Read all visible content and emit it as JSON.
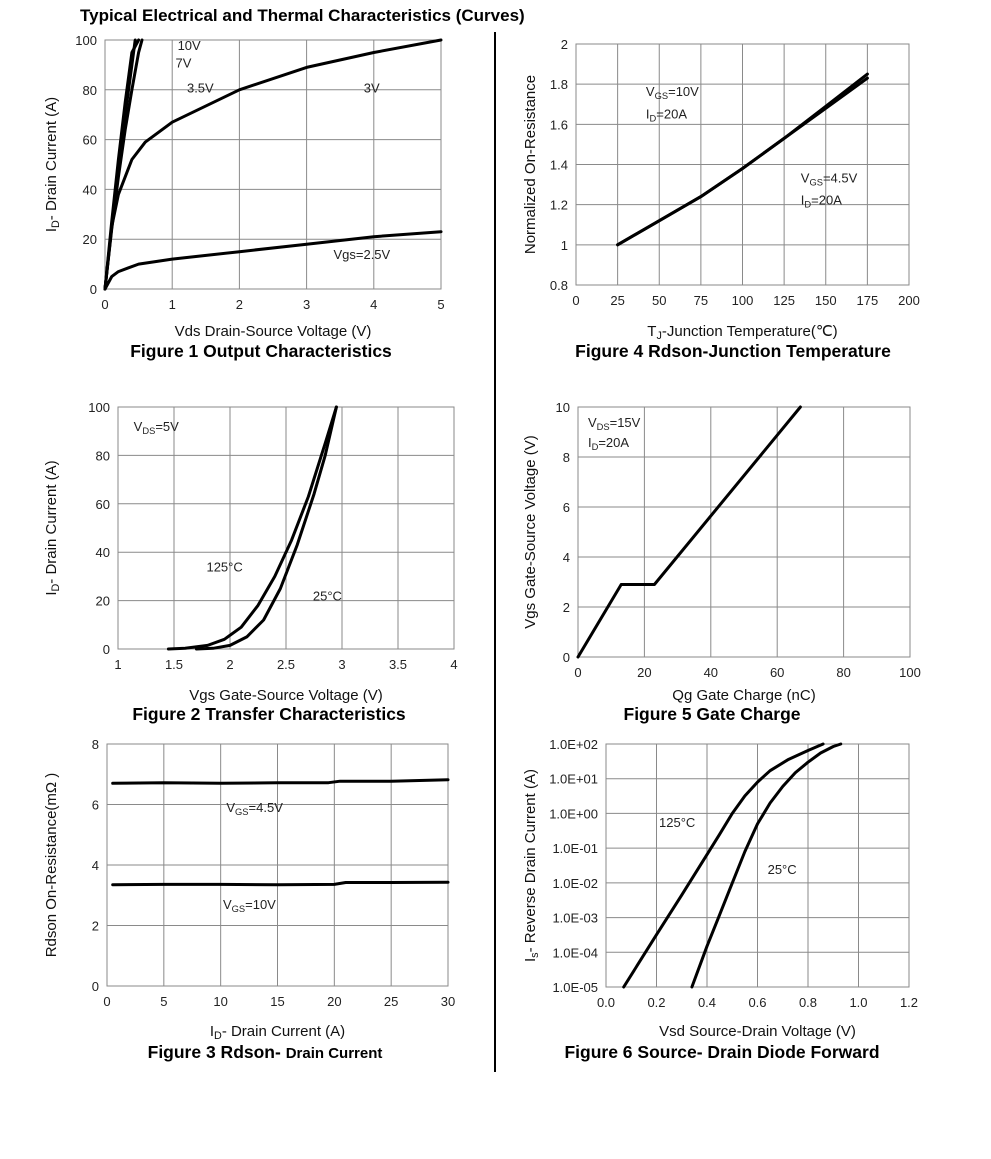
{
  "page_title": "Typical Electrical and Thermal Characteristics (Curves)",
  "chart_data": [
    {
      "id": "fig1",
      "type": "line",
      "caption": "Figure 1 Output Characteristics",
      "xlabel": "Vds Drain-Source Voltage (V)",
      "ylabel": "I D- Drain Current (A)",
      "xlim": [
        0,
        5
      ],
      "ylim": [
        0,
        100
      ],
      "xticks": [
        0,
        1,
        2,
        3,
        4,
        5
      ],
      "yticks": [
        0,
        20,
        40,
        60,
        80,
        100
      ],
      "grid": true,
      "series": [
        {
          "name": "10V",
          "x": [
            0,
            0.1,
            0.2,
            0.3,
            0.4,
            0.5
          ],
          "y": [
            0,
            27,
            52,
            75,
            95,
            100
          ]
        },
        {
          "name": "7V",
          "x": [
            0,
            0.1,
            0.2,
            0.3,
            0.4,
            0.45
          ],
          "y": [
            0,
            25,
            48,
            70,
            90,
            100
          ]
        },
        {
          "name": "3.5V",
          "x": [
            0,
            0.1,
            0.2,
            0.3,
            0.4,
            0.5,
            0.55
          ],
          "y": [
            0,
            24,
            45,
            64,
            80,
            95,
            100
          ]
        },
        {
          "name": "3V",
          "x": [
            0,
            0.1,
            0.2,
            0.4,
            0.6,
            1.0,
            2.0,
            3.0,
            4.0,
            5.0
          ],
          "y": [
            0,
            25,
            38,
            52,
            59,
            67,
            80,
            89,
            95,
            100
          ]
        },
        {
          "name": "Vgs=2.5V",
          "x": [
            0,
            0.1,
            0.2,
            0.5,
            1.0,
            2.0,
            3.0,
            4.0,
            5.0
          ],
          "y": [
            0,
            5,
            7,
            10,
            12,
            15,
            18,
            21,
            23
          ]
        }
      ],
      "labels": [
        {
          "text": "10V",
          "x": 1.08,
          "y": 96
        },
        {
          "text": "7V",
          "x": 1.05,
          "y": 89
        },
        {
          "text": "3.5V",
          "x": 1.22,
          "y": 79
        },
        {
          "text": "3V",
          "x": 3.85,
          "y": 79
        },
        {
          "text": "Vgs=2.5V",
          "x": 3.4,
          "y": 12
        }
      ]
    },
    {
      "id": "fig4",
      "type": "line",
      "caption": "Figure 4 Rdson-Junction Temperature",
      "xlabel": "TJ-Junction Temperature(℃)",
      "ylabel": "Normalized On-Resistance",
      "xlim": [
        0,
        200
      ],
      "ylim": [
        0.8,
        2
      ],
      "xticks": [
        0,
        25,
        50,
        75,
        100,
        125,
        150,
        175,
        200
      ],
      "yticks": [
        0.8,
        1,
        1.2,
        1.4,
        1.6,
        1.8,
        2
      ],
      "ytick_labels": [
        "0.8",
        "1",
        "1.2",
        "1.4",
        "1.6",
        "1.8",
        "2"
      ],
      "grid": true,
      "series": [
        {
          "name": "VGS=10V, ID=20A",
          "x": [
            25,
            50,
            75,
            100,
            125,
            150,
            175
          ],
          "y": [
            1.0,
            1.12,
            1.24,
            1.38,
            1.53,
            1.69,
            1.85
          ]
        },
        {
          "name": "VGS=4.5V, ID=20A",
          "x": [
            25,
            50,
            75,
            100,
            125,
            150,
            175
          ],
          "y": [
            1.0,
            1.12,
            1.24,
            1.38,
            1.53,
            1.68,
            1.83
          ]
        }
      ],
      "labels": [
        {
          "text": "VGS=10V",
          "x": 42,
          "y": 1.74
        },
        {
          "text": "ID=20A",
          "x": 42,
          "y": 1.63
        },
        {
          "text": "VGS=4.5V",
          "x": 135,
          "y": 1.31
        },
        {
          "text": "ID=20A",
          "x": 135,
          "y": 1.2
        }
      ]
    },
    {
      "id": "fig2",
      "type": "line",
      "caption": "Figure 2 Transfer Characteristics",
      "xlabel": "Vgs Gate-Source Voltage (V)",
      "ylabel": "I D- Drain Current (A)",
      "xlim": [
        1,
        4
      ],
      "ylim": [
        0,
        100
      ],
      "xticks": [
        1,
        1.5,
        2,
        2.5,
        3,
        3.5,
        4
      ],
      "yticks": [
        0,
        20,
        40,
        60,
        80,
        100
      ],
      "grid": true,
      "series": [
        {
          "name": "125°C",
          "x": [
            1.45,
            1.6,
            1.8,
            1.95,
            2.1,
            2.25,
            2.4,
            2.55,
            2.7,
            2.85,
            2.95
          ],
          "y": [
            0,
            0.3,
            1.5,
            4,
            9,
            18,
            30,
            45,
            63,
            85,
            100
          ]
        },
        {
          "name": "25°C",
          "x": [
            1.7,
            1.85,
            2.0,
            2.15,
            2.3,
            2.45,
            2.6,
            2.75,
            2.85,
            2.95
          ],
          "y": [
            0,
            0.3,
            1.5,
            5,
            12,
            25,
            43,
            64,
            80,
            100
          ]
        }
      ],
      "labels": [
        {
          "text": "VDS=5V",
          "x": 1.14,
          "y": 90
        },
        {
          "text": "125°C",
          "x": 1.79,
          "y": 32
        },
        {
          "text": "25°C",
          "x": 2.74,
          "y": 20
        }
      ]
    },
    {
      "id": "fig5",
      "type": "line",
      "caption": "Figure 5 Gate Charge",
      "xlabel": "Qg Gate Charge (nC)",
      "ylabel": "Vgs Gate-Source Voltage (V)",
      "xlim": [
        0,
        100
      ],
      "ylim": [
        0,
        10
      ],
      "xticks": [
        0,
        20,
        40,
        60,
        80,
        100
      ],
      "yticks": [
        0,
        2,
        4,
        6,
        8,
        10
      ],
      "grid": true,
      "series": [
        {
          "name": "VDS=15V, ID=20A",
          "x": [
            0,
            13,
            23,
            67
          ],
          "y": [
            0,
            2.9,
            2.9,
            10
          ]
        }
      ],
      "labels": [
        {
          "text": "VDS=15V",
          "x": 3,
          "y": 9.2
        },
        {
          "text": "ID=20A",
          "x": 3,
          "y": 8.4
        }
      ]
    },
    {
      "id": "fig3",
      "type": "line",
      "caption": "Figure 3 Rdson- Drain Current",
      "caption_bold": "Figure 3 Rdson- ",
      "caption_rest": "Drain Current",
      "xlabel": "ID- Drain Current (A)",
      "ylabel": "Rdson On-Resistance(mΩ )",
      "xlim": [
        0,
        30
      ],
      "ylim": [
        0,
        8
      ],
      "xticks": [
        0,
        5,
        10,
        15,
        20,
        25,
        30
      ],
      "yticks": [
        0,
        2,
        4,
        6,
        8
      ],
      "grid": true,
      "series": [
        {
          "name": "VGS=4.5V",
          "x": [
            0.5,
            5,
            10,
            15,
            19.5,
            20.5,
            25,
            30
          ],
          "y": [
            6.7,
            6.72,
            6.7,
            6.72,
            6.72,
            6.77,
            6.77,
            6.82
          ]
        },
        {
          "name": "VGS=10V",
          "x": [
            0.5,
            5,
            10,
            15,
            20,
            21,
            25,
            30
          ],
          "y": [
            3.35,
            3.36,
            3.36,
            3.35,
            3.36,
            3.42,
            3.42,
            3.43
          ]
        }
      ],
      "labels": [
        {
          "text": "VGS=4.5V",
          "x": 10.5,
          "y": 5.75
        },
        {
          "text": "VGS=10V",
          "x": 10.2,
          "y": 2.55
        }
      ]
    },
    {
      "id": "fig6",
      "type": "line",
      "caption": "Figure 6 Source- Drain Diode Forward",
      "xlabel": "Vsd Source-Drain Voltage (V)",
      "ylabel": "Is- Reverse Drain Current (A)",
      "xlim": [
        0,
        1.2
      ],
      "ylim": [
        1e-05,
        100
      ],
      "yscale": "log",
      "xticks": [
        0,
        0.2,
        0.4,
        0.6,
        0.8,
        1.0,
        1.2
      ],
      "xtick_labels": [
        "0.0",
        "0.2",
        "0.4",
        "0.6",
        "0.8",
        "1.0",
        "1.2"
      ],
      "yticks": [
        1e-05,
        0.0001,
        0.001,
        0.01,
        0.1,
        1,
        10,
        100
      ],
      "ytick_labels": [
        "1.0E-05",
        "1.0E-04",
        "1.0E-03",
        "1.0E-02",
        "1.0E-01",
        "1.0E+00",
        "1.0E+01",
        "1.0E+02"
      ],
      "grid": true,
      "series": [
        {
          "name": "125°C",
          "x": [
            0.07,
            0.2,
            0.3,
            0.4,
            0.45,
            0.5,
            0.55,
            0.6,
            0.65,
            0.72,
            0.8,
            0.86
          ],
          "y": [
            1e-05,
            0.00032,
            0.0045,
            0.065,
            0.25,
            1,
            3.2,
            8,
            17,
            35,
            65,
            100
          ]
        },
        {
          "name": "25°C",
          "x": [
            0.34,
            0.4,
            0.45,
            0.5,
            0.55,
            0.6,
            0.65,
            0.7,
            0.75,
            0.8,
            0.85,
            0.9,
            0.93
          ],
          "y": [
            1e-05,
            0.00015,
            0.0012,
            0.01,
            0.08,
            0.5,
            2,
            6,
            15,
            30,
            55,
            85,
            100
          ]
        }
      ],
      "labels": [
        {
          "text": "125°C",
          "x": 0.21,
          "y": 0.4
        },
        {
          "text": "25°C",
          "x": 0.64,
          "y": 0.018
        }
      ]
    }
  ]
}
